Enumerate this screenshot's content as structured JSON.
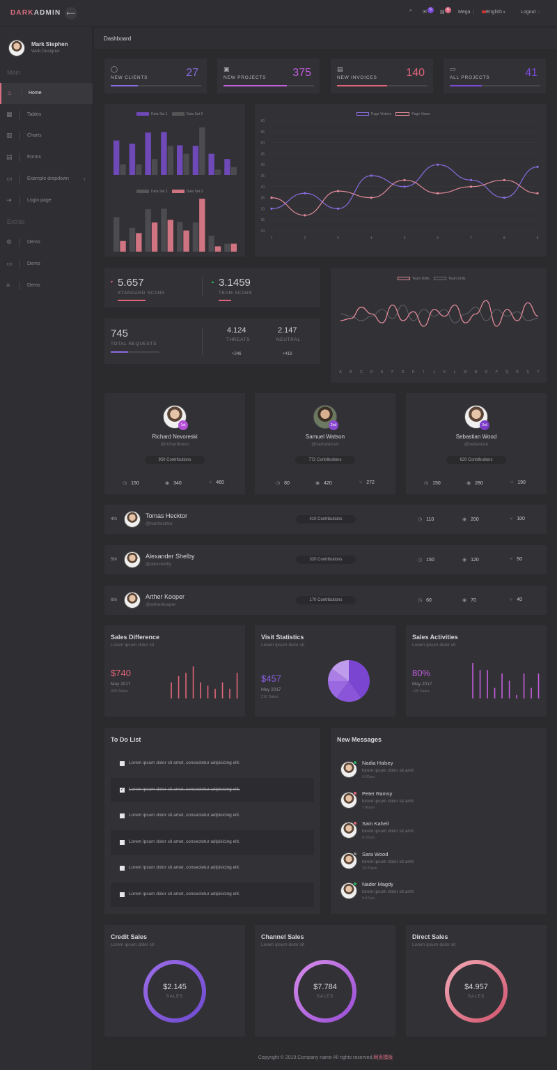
{
  "brand": {
    "dark": "DARK",
    "admin": "ADMIN"
  },
  "topbar": {
    "mega": "Mega",
    "language": "English",
    "logout": "Logout",
    "badge_mail": "6",
    "badge_tasks": "6"
  },
  "user": {
    "name": "Mark Stephen",
    "role": "Web Designer"
  },
  "sidebar": {
    "main_heading": "Main",
    "extras_heading": "Extras",
    "items": [
      {
        "label": "Home"
      },
      {
        "label": "Tables"
      },
      {
        "label": "Charts"
      },
      {
        "label": "Forms"
      },
      {
        "label": "Example dropdown"
      },
      {
        "label": "Login page"
      }
    ],
    "extras": [
      {
        "label": "Demo"
      },
      {
        "label": "Demo"
      },
      {
        "label": "Demo"
      }
    ]
  },
  "breadcrumb": "Dashboard",
  "stats": [
    {
      "label": "NEW CLIENTS",
      "value": "27",
      "color": "#8a6be0",
      "progress": 0.3
    },
    {
      "label": "NEW PROJECTS",
      "value": "375",
      "color": "#c35ddf",
      "progress": 0.7
    },
    {
      "label": "NEW INVOICES",
      "value": "140",
      "color": "#e1657a",
      "progress": 0.55
    },
    {
      "label": "ALL PROJECTS",
      "value": "41",
      "color": "#7b4ad8",
      "progress": 0.35
    }
  ],
  "chart_data": [
    {
      "type": "bar",
      "series": [
        {
          "name": "Data Set 1",
          "values": [
            65,
            59,
            80,
            81,
            56,
            55,
            40,
            30
          ]
        },
        {
          "name": "Data Set 2",
          "values": [
            20,
            20,
            30,
            55,
            40,
            90,
            10,
            15
          ]
        }
      ],
      "legend_position": "top"
    },
    {
      "type": "bar",
      "series": [
        {
          "name": "Data Set 1",
          "values": [
            65,
            45,
            80,
            81,
            56,
            55,
            30,
            15
          ]
        },
        {
          "name": "Data Set 2",
          "values": [
            20,
            35,
            55,
            60,
            40,
            100,
            10,
            15
          ]
        }
      ],
      "legend_position": "top"
    },
    {
      "type": "line",
      "categories": [
        "1",
        "2",
        "3",
        "4",
        "5",
        "6",
        "7",
        "8",
        "9"
      ],
      "ylim": [
        10,
        60
      ],
      "yticks": [
        "60",
        "55",
        "50",
        "45",
        "40",
        "35",
        "30",
        "25",
        "20",
        "15",
        "10"
      ],
      "series": [
        {
          "name": "Page Visitors",
          "color": "#8a6be0",
          "values": [
            20,
            27,
            20,
            35,
            30,
            40,
            33,
            25,
            39
          ]
        },
        {
          "name": "Page Views",
          "color": "#e28a99",
          "values": [
            25,
            17,
            28,
            25,
            33,
            27,
            30,
            33,
            27
          ]
        }
      ],
      "legend_position": "top"
    },
    {
      "type": "line",
      "categories": [
        "A",
        "B",
        "C",
        "D",
        "E",
        "F",
        "G",
        "H",
        "I",
        "J",
        "K",
        "L",
        "M",
        "N",
        "O",
        "P",
        "Q",
        "R",
        "S",
        "T"
      ],
      "series": [
        {
          "name": "Team Drills",
          "color": "#e28a99",
          "values": [
            40,
            42,
            52,
            46,
            38,
            54,
            40,
            48,
            35,
            50,
            44,
            54,
            38,
            46,
            58,
            35,
            50,
            40,
            56,
            44
          ]
        },
        {
          "name": "Team Drills",
          "color": "#6d6d73",
          "values": [
            46,
            44,
            40,
            44,
            50,
            42,
            54,
            40,
            50,
            44,
            50,
            38,
            46,
            52,
            40,
            50,
            44,
            48,
            40,
            42
          ]
        }
      ],
      "legend_position": "top"
    },
    {
      "type": "bar",
      "title": "Sales Difference",
      "values": [
        5,
        7,
        8,
        10,
        5,
        4,
        3,
        5,
        3,
        8
      ]
    },
    {
      "type": "pie",
      "title": "Visit Statistics",
      "values": [
        40,
        20,
        15,
        10,
        15
      ]
    },
    {
      "type": "bar",
      "title": "Sales Activities",
      "values": [
        10,
        8,
        8,
        3,
        7,
        5,
        1,
        7,
        3,
        7
      ]
    }
  ],
  "scans": {
    "standard_value": "5.657",
    "standard_label": "STANDARD SCANS",
    "team_value": "3.1459",
    "team_label": "TEAM SCANS"
  },
  "requests": {
    "total": "745",
    "total_label": "TOTAL REQUESTS",
    "threats": "4.124",
    "threats_label": "THREATS",
    "threats_delta": "+246",
    "neutral": "2.147",
    "neutral_label": "NEUTRAL",
    "neutral_delta": "+416"
  },
  "top_users": [
    {
      "name": "Richard Nevoreski",
      "handle": "@richardnevo",
      "rank": "1st",
      "contrib": "950 Contributions",
      "a": "150",
      "b": "340",
      "c": "460"
    },
    {
      "name": "Samuel Watson",
      "handle": "@samwatson",
      "rank": "2nd",
      "contrib": "772 Contributions",
      "a": "80",
      "b": "420",
      "c": "272"
    },
    {
      "name": "Sebastian Wood",
      "handle": "@sebastian",
      "rank": "3rd",
      "contrib": "620 Contributions",
      "a": "150",
      "b": "280",
      "c": "190"
    }
  ],
  "rank_list": [
    {
      "rank": "4th",
      "name": "Tomas Hecktor",
      "handle": "@tomhecktor",
      "contrib": "410 Contributions",
      "a": "110",
      "b": "200",
      "c": "100"
    },
    {
      "rank": "5th",
      "name": "Alexander Shelby",
      "handle": "@alexshelby",
      "contrib": "320 Contributions",
      "a": "150",
      "b": "120",
      "c": "50"
    },
    {
      "rank": "6th",
      "name": "Arther Kooper",
      "handle": "@artherkooper",
      "contrib": "170 Contributions",
      "a": "60",
      "b": "70",
      "c": "40"
    }
  ],
  "summaries": [
    {
      "title": "Sales Difference",
      "sub": "Lorem ipsum dolor sit",
      "value": "$740",
      "date": "May 2017",
      "note": "320 Sales",
      "color": "#e1657a"
    },
    {
      "title": "Visit Statistics",
      "sub": "Lorem ipsum dolor sit",
      "value": "$457",
      "date": "May 2017",
      "note": "210 Sales",
      "color": "#8a5ee0"
    },
    {
      "title": "Sales Activities",
      "sub": "Lorem ipsum dolor sit",
      "value": "80%",
      "date": "May 2017",
      "note": "+35 Sales",
      "color": "#c35ddf"
    }
  ],
  "todo": {
    "title": "To Do List",
    "items": [
      {
        "text": "Lorem ipsum dolor sit amet, consectetur adipisicing elit.",
        "done": false
      },
      {
        "text": "Lorem ipsum dolor sit amet, consectetur adipisicing elit.",
        "done": true
      },
      {
        "text": "Lorem ipsum dolor sit amet, consectetur adipisicing elit.",
        "done": false
      },
      {
        "text": "Lorem ipsum dolor sit amet, consectetur adipisicing elit.",
        "done": false
      },
      {
        "text": "Lorem ipsum dolor sit amet, consectetur adipisicing elit.",
        "done": false
      },
      {
        "text": "Lorem ipsum dolor sit amet, consectetur adipisicing elit.",
        "done": false
      }
    ]
  },
  "messages": {
    "title": "New Messages",
    "items": [
      {
        "name": "Nadia Halsey",
        "text": "lorem ipsum dolor sit amit",
        "time": "9:30am",
        "status": "#27ae60"
      },
      {
        "name": "Peter Ramsy",
        "text": "lorem ipsum dolor sit amit",
        "time": "7:40am",
        "status": "#e1657a"
      },
      {
        "name": "Sam Kaheil",
        "text": "lorem ipsum dolor sit amit",
        "time": "6:55am",
        "status": "#e1657a"
      },
      {
        "name": "Sara Wood",
        "text": "lorem ipsum dolor sit amit",
        "time": "10:30pm",
        "status": "#888"
      },
      {
        "name": "Nader Magdy",
        "text": "lorem ipsum dolor sit amit",
        "time": "9:47pm",
        "status": "#27ae60"
      }
    ]
  },
  "rings": [
    {
      "title": "Credit Sales",
      "sub": "Lorem ipsum dolor sit",
      "value": "$2.145",
      "label": "SALES",
      "c1": "#6f4bd0",
      "c2": "#9b6ce6"
    },
    {
      "title": "Channel Sales",
      "sub": "Lorem ipsum dolor sit",
      "value": "$7.784",
      "label": "SALES",
      "c1": "#a14fd8",
      "c2": "#c86ee6"
    },
    {
      "title": "Direct Sales",
      "sub": "Lorem ipsum dolor sit",
      "value": "$4.957",
      "label": "SALES",
      "c1": "#d9607a",
      "c2": "#f0a0ae"
    }
  ],
  "footer": {
    "text": "Copyright © 2019.Company name All rights reserved.",
    "link": "网页模板"
  }
}
